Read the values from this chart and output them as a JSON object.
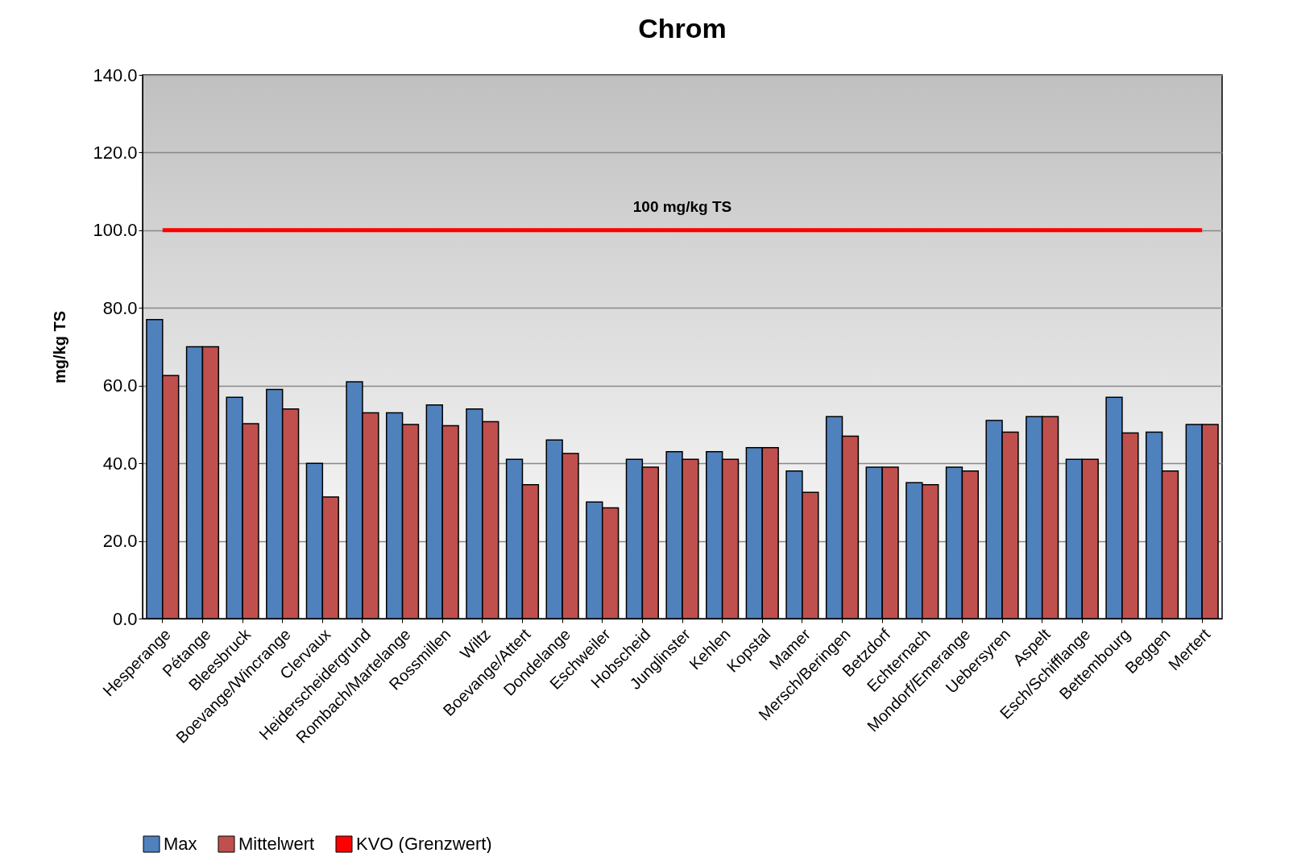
{
  "chart_data": {
    "type": "bar",
    "title": "Chrom",
    "ylabel": "mg/kg TS",
    "categories": [
      "Hesperange",
      "Pétange",
      "Bleesbruck",
      "Boevange/Wincrange",
      "Clervaux",
      "Heiderscheidergrund",
      "Rombach/Martelange",
      "Rossmillen",
      "Wiltz",
      "Boevange/Attert",
      "Dondelange",
      "Eschweiler",
      "Hobscheid",
      "Junglinster",
      "Kehlen",
      "Kopstal",
      "Mamer",
      "Mersch/Beringen",
      "Betzdorf",
      "Echternach",
      "Mondorf/Emerange",
      "Uebersyren",
      "Aspelt",
      "Esch/Schifflange",
      "Bettembourg",
      "Beggen",
      "Mertert"
    ],
    "series": [
      {
        "name": "Max",
        "color": "#4f81bd",
        "values": [
          77,
          70,
          57,
          59,
          40,
          61,
          53,
          55,
          54,
          41,
          46,
          30,
          41,
          43,
          43,
          44,
          38,
          52,
          39,
          35,
          39,
          51,
          52,
          41,
          57,
          48,
          50
        ]
      },
      {
        "name": "Mittelwert",
        "color": "#c0504d",
        "values": [
          62.6,
          70,
          50.2,
          54,
          31.3,
          53,
          50,
          49.7,
          50.7,
          34.5,
          42.5,
          28.5,
          39,
          41,
          41,
          44,
          32.5,
          47,
          39,
          34.5,
          38,
          48,
          52,
          41,
          47.8,
          38,
          50
        ]
      },
      {
        "name": "KVO (Grenzwert)",
        "type": "line",
        "color": "#ff0000",
        "values": [
          100,
          100,
          100,
          100,
          100,
          100,
          100,
          100,
          100,
          100,
          100,
          100,
          100,
          100,
          100,
          100,
          100,
          100,
          100,
          100,
          100,
          100,
          100,
          100,
          100,
          100,
          100
        ]
      }
    ],
    "annotations": [
      {
        "text": "100 mg/kg TS",
        "y": 100
      }
    ],
    "ylim": [
      0,
      140
    ],
    "yticks": [
      {
        "value": 0,
        "label": "0.0"
      },
      {
        "value": 20,
        "label": "20.0"
      },
      {
        "value": 40,
        "label": "40.0"
      },
      {
        "value": 60,
        "label": "60.0"
      },
      {
        "value": 80,
        "label": "80.0"
      },
      {
        "value": 100,
        "label": "100.0"
      },
      {
        "value": 120,
        "label": "120.0"
      },
      {
        "value": 140,
        "label": "140.0"
      }
    ],
    "grid": "y",
    "legend": "bottom",
    "marker": "none",
    "line_style": "solid"
  }
}
